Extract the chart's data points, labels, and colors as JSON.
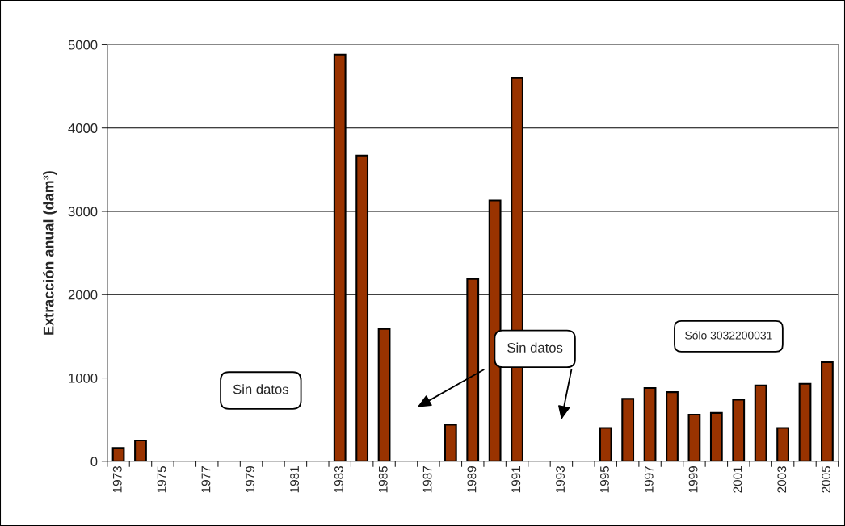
{
  "chart_data": {
    "type": "bar",
    "ylabel": "Extracción anual (dam³)",
    "categories": [
      "1973",
      null,
      "1975",
      null,
      "1977",
      null,
      "1979",
      null,
      "1981",
      null,
      "1983",
      null,
      "1985",
      null,
      "1987",
      null,
      "1989",
      null,
      "1991",
      null,
      "1993",
      null,
      "1995",
      null,
      "1997",
      null,
      "1999",
      null,
      "2001",
      null,
      "2003",
      null,
      "2005"
    ],
    "values": [
      160,
      250,
      null,
      null,
      null,
      null,
      null,
      null,
      null,
      null,
      4880,
      3670,
      1590,
      null,
      null,
      440,
      2190,
      3130,
      4600,
      null,
      null,
      null,
      400,
      750,
      880,
      830,
      560,
      580,
      740,
      910,
      400,
      930,
      1190
    ],
    "color": "#993300",
    "ylim": [
      0,
      5000
    ],
    "yticks": [
      0,
      1000,
      2000,
      3000,
      4000,
      5000
    ],
    "grid": "y",
    "annotations": [
      "Sin datos",
      "Sin datos",
      "Sólo 3032200031"
    ]
  }
}
